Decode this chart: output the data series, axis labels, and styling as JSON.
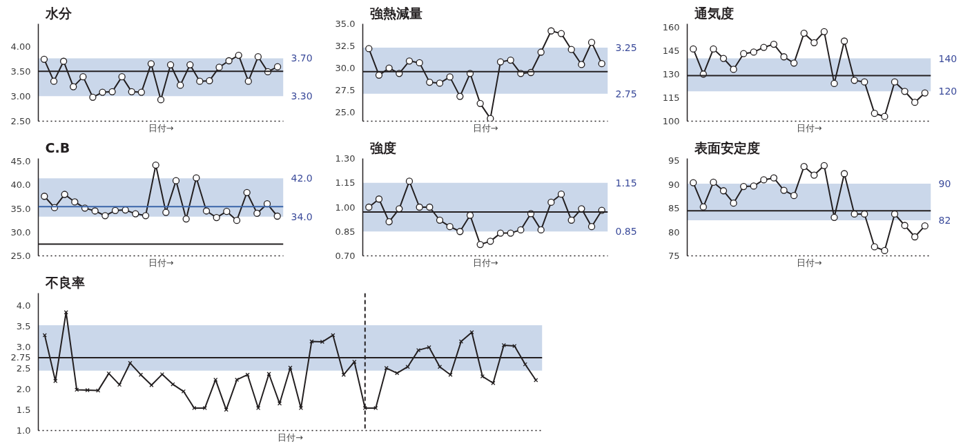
{
  "chart_data": [
    {
      "type": "line",
      "title": "水分",
      "xlabel": "日付→",
      "categories": [
        null,
        null,
        null,
        null,
        null,
        null,
        null,
        null,
        null,
        null,
        null,
        null,
        null,
        null,
        null,
        null,
        null,
        null,
        null,
        null,
        null,
        null,
        null,
        null,
        null
      ],
      "series": [
        {
          "color": "#231f20",
          "values": [
            3.74,
            3.3,
            3.7,
            3.19,
            3.39,
            2.98,
            3.08,
            3.09,
            3.39,
            3.09,
            3.08,
            3.65,
            2.93,
            3.63,
            3.22,
            3.63,
            3.3,
            3.31,
            3.58,
            3.71,
            3.82,
            3.3,
            3.79,
            3.49,
            3.59
          ]
        }
      ],
      "ylim": [
        2.5,
        4.45
      ],
      "yticks": [
        {
          "value": 2.5,
          "label": "2.50"
        },
        {
          "value": 3,
          "label": "3.00"
        },
        {
          "value": 3.5,
          "label": "3.50"
        },
        {
          "value": 4,
          "label": "4.00"
        }
      ],
      "bands": [
        {
          "axis": "y",
          "from": 3.0,
          "to": 3.76,
          "color": "#cad7ea"
        }
      ],
      "ref_lines": [
        {
          "axis": "y",
          "value": 3.5,
          "color": "#231f20"
        }
      ],
      "annotations": [
        "3.70",
        "3.30"
      ],
      "marker": "circle",
      "grid": false,
      "tick_labels": "y"
    },
    {
      "type": "line",
      "title": "強熱減量",
      "xlabel": "日付→",
      "categories": [
        null,
        null,
        null,
        null,
        null,
        null,
        null,
        null,
        null,
        null,
        null,
        null,
        null,
        null,
        null,
        null,
        null,
        null,
        null,
        null,
        null,
        null,
        null,
        null
      ],
      "series": [
        {
          "color": "#231f20",
          "values": [
            32.2,
            29.2,
            30.0,
            29.4,
            30.8,
            30.6,
            28.4,
            28.3,
            29.0,
            26.8,
            29.4,
            26.0,
            24.3,
            30.7,
            30.9,
            29.4,
            29.5,
            31.8,
            34.2,
            33.9,
            32.1,
            30.4,
            32.9,
            30.5
          ]
        }
      ],
      "ylim": [
        24.0,
        35.0
      ],
      "yticks": [
        {
          "value": 25,
          "label": "25.0"
        },
        27.5,
        {
          "value": 30,
          "label": "30.0"
        },
        32.5,
        {
          "value": 35,
          "label": "35.0"
        }
      ],
      "bands": [
        {
          "axis": "y",
          "from": 27.1,
          "to": 32.3,
          "color": "#cad7ea"
        }
      ],
      "ref_lines": [
        {
          "axis": "y",
          "value": 29.6,
          "color": "#231f20"
        }
      ],
      "annotations": [
        "3.25",
        "2.75"
      ],
      "marker": "circle",
      "grid": false,
      "tick_labels": "y"
    },
    {
      "type": "line",
      "title": "通気度",
      "xlabel": "日付→",
      "categories": [
        null,
        null,
        null,
        null,
        null,
        null,
        null,
        null,
        null,
        null,
        null,
        null,
        null,
        null,
        null,
        null,
        null,
        null,
        null,
        null,
        null,
        null,
        null,
        null
      ],
      "series": [
        {
          "color": "#231f20",
          "values": [
            146,
            130,
            146,
            140,
            133,
            143,
            144,
            147,
            149,
            141,
            137,
            156,
            150,
            157,
            124,
            151,
            126,
            125,
            105,
            103,
            125,
            119,
            112,
            118
          ]
        }
      ],
      "ylim": [
        100,
        162
      ],
      "yticks": [
        100,
        115,
        130,
        145,
        160
      ],
      "bands": [
        {
          "axis": "y",
          "from": 119,
          "to": 140,
          "color": "#cad7ea"
        }
      ],
      "ref_lines": [
        {
          "axis": "y",
          "value": 129,
          "color": "#231f20"
        }
      ],
      "annotations": [
        "140",
        "120"
      ],
      "marker": "circle",
      "grid": false,
      "tick_labels": "y"
    },
    {
      "type": "line",
      "title": "C.B",
      "xlabel": "日付→",
      "categories": [
        null,
        null,
        null,
        null,
        null,
        null,
        null,
        null,
        null,
        null,
        null,
        null,
        null,
        null,
        null,
        null,
        null,
        null,
        null,
        null,
        null,
        null,
        null,
        null
      ],
      "series": [
        {
          "color": "#231f20",
          "values": [
            37.6,
            35.2,
            38.0,
            36.4,
            35.1,
            34.5,
            33.5,
            34.6,
            34.7,
            33.9,
            33.5,
            44.2,
            34.2,
            40.9,
            32.8,
            41.5,
            34.5,
            33.1,
            34.4,
            32.5,
            38.4,
            34.0,
            36.0,
            33.4
          ]
        }
      ],
      "ylim": [
        25.0,
        45.6
      ],
      "yticks": [
        {
          "value": 25,
          "label": "25.0"
        },
        {
          "value": 30,
          "label": "30.0"
        },
        {
          "value": 35,
          "label": "35.0"
        },
        {
          "value": 40,
          "label": "40.0"
        },
        {
          "value": 45,
          "label": "45.0"
        }
      ],
      "bands": [
        {
          "axis": "y",
          "from": 33.3,
          "to": 41.4,
          "color": "#cad7ea"
        }
      ],
      "ref_lines": [
        {
          "axis": "y",
          "value": 35.4,
          "color": "#3a64a8"
        },
        {
          "axis": "y",
          "value": 27.5,
          "color": "#231f20"
        }
      ],
      "annotations": [
        "42.0",
        "34.0"
      ],
      "marker": "circle",
      "grid": false,
      "tick_labels": "y"
    },
    {
      "type": "line",
      "title": "強度",
      "xlabel": "日付→",
      "categories": [
        null,
        null,
        null,
        null,
        null,
        null,
        null,
        null,
        null,
        null,
        null,
        null,
        null,
        null,
        null,
        null,
        null,
        null,
        null,
        null,
        null,
        null,
        null,
        null
      ],
      "series": [
        {
          "color": "#231f20",
          "values": [
            1.0,
            1.05,
            0.91,
            0.99,
            1.16,
            1.0,
            1.0,
            0.92,
            0.88,
            0.85,
            0.95,
            0.77,
            0.79,
            0.84,
            0.84,
            0.86,
            0.96,
            0.86,
            1.03,
            1.08,
            0.92,
            0.99,
            0.88,
            0.98
          ]
        }
      ],
      "ylim": [
        0.7,
        1.3
      ],
      "yticks": [
        {
          "value": 0.7,
          "label": "0.70"
        },
        0.85,
        {
          "value": 1,
          "label": "1.00"
        },
        1.15,
        {
          "value": 1.3,
          "label": "1.30"
        }
      ],
      "bands": [
        {
          "axis": "y",
          "from": 0.85,
          "to": 1.15,
          "color": "#cad7ea"
        }
      ],
      "ref_lines": [
        {
          "axis": "y",
          "value": 0.97,
          "color": "#231f20"
        }
      ],
      "annotations": [
        "1.15",
        "0.85"
      ],
      "marker": "circle",
      "grid": false,
      "tick_labels": "y"
    },
    {
      "type": "line",
      "title": "表面安定度",
      "xlabel": "日付→",
      "categories": [
        null,
        null,
        null,
        null,
        null,
        null,
        null,
        null,
        null,
        null,
        null,
        null,
        null,
        null,
        null,
        null,
        null,
        null,
        null,
        null,
        null,
        null,
        null,
        null
      ],
      "series": [
        {
          "color": "#231f20",
          "values": [
            90.4,
            85.3,
            90.5,
            88.7,
            86.1,
            89.6,
            89.7,
            91.0,
            91.4,
            88.8,
            87.7,
            93.8,
            92.0,
            94.0,
            83.1,
            92.3,
            83.8,
            83.8,
            76.9,
            76.1,
            83.8,
            81.4,
            79.0,
            81.3
          ]
        }
      ],
      "ylim": [
        75,
        95.5
      ],
      "yticks": [
        75,
        80,
        85,
        90,
        95
      ],
      "bands": [
        {
          "axis": "y",
          "from": 82.5,
          "to": 90.2,
          "color": "#cad7ea"
        }
      ],
      "ref_lines": [
        {
          "axis": "y",
          "value": 84.5,
          "color": "#231f20"
        }
      ],
      "annotations": [
        "90",
        "82"
      ],
      "marker": "circle",
      "grid": false,
      "tick_labels": "y"
    },
    {
      "type": "line",
      "title": "不良率",
      "xlabel": "日付→",
      "categories": [
        null,
        null,
        null,
        null,
        null,
        null,
        null,
        null,
        null,
        null,
        null,
        null,
        null,
        null,
        null,
        null,
        null,
        null,
        null,
        null,
        null,
        null,
        null,
        null,
        null,
        null,
        null,
        null,
        null,
        null,
        null,
        null,
        null,
        null,
        null,
        null,
        null,
        null,
        null,
        null,
        null,
        null,
        null,
        null,
        null,
        null,
        null
      ],
      "series": [
        {
          "color": "#231f20",
          "values": [
            3.29,
            2.19,
            3.84,
            1.98,
            1.97,
            1.96,
            2.37,
            2.1,
            2.62,
            2.34,
            2.09,
            2.35,
            2.11,
            1.94,
            1.54,
            1.54,
            2.22,
            1.5,
            2.22,
            2.34,
            1.54,
            2.36,
            1.65,
            2.51,
            1.54,
            3.14,
            3.13,
            3.29,
            2.34,
            2.65,
            1.54,
            1.54,
            2.5,
            2.38,
            2.53,
            2.93,
            3.0,
            2.53,
            2.34,
            3.14,
            3.36,
            2.3,
            2.14,
            3.05,
            3.03,
            2.59,
            2.21
          ]
        }
      ],
      "ylim": [
        1.0,
        4.3
      ],
      "yticks": [
        {
          "value": 1,
          "label": "1.0"
        },
        1.5,
        {
          "value": 2,
          "label": "2.0"
        },
        2.5,
        2.75,
        {
          "value": 3,
          "label": "3.0"
        },
        3.5,
        {
          "value": 4,
          "label": "4.0"
        }
      ],
      "bands": [
        {
          "axis": "y",
          "from": 2.44,
          "to": 3.53,
          "color": "#cad7ea"
        }
      ],
      "ref_lines": [
        {
          "axis": "y",
          "value": 2.75,
          "color": "#231f20"
        }
      ],
      "marker": "cross",
      "grid": false,
      "tick_labels": "y"
    }
  ]
}
